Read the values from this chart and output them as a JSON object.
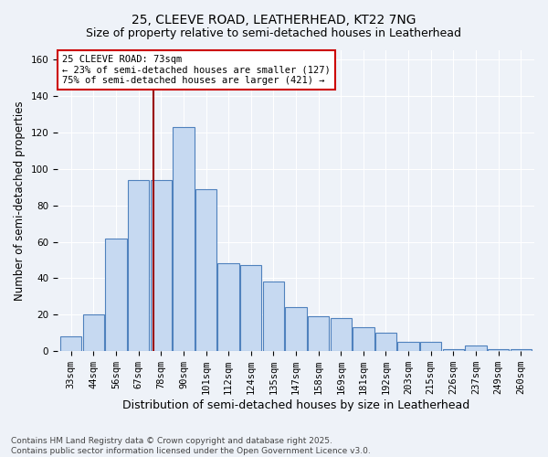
{
  "title": "25, CLEEVE ROAD, LEATHERHEAD, KT22 7NG",
  "subtitle": "Size of property relative to semi-detached houses in Leatherhead",
  "xlabel": "Distribution of semi-detached houses by size in Leatherhead",
  "ylabel": "Number of semi-detached properties",
  "categories": [
    "33sqm",
    "44sqm",
    "56sqm",
    "67sqm",
    "78sqm",
    "90sqm",
    "101sqm",
    "112sqm",
    "124sqm",
    "135sqm",
    "147sqm",
    "158sqm",
    "169sqm",
    "181sqm",
    "192sqm",
    "203sqm",
    "215sqm",
    "226sqm",
    "237sqm",
    "249sqm",
    "260sqm"
  ],
  "values": [
    8,
    20,
    62,
    94,
    94,
    123,
    89,
    48,
    47,
    38,
    24,
    19,
    18,
    13,
    10,
    5,
    5,
    1,
    3,
    1,
    1
  ],
  "bar_color": "#c6d9f1",
  "bar_edge_color": "#4f81bd",
  "red_line_x": 3.65,
  "annotation_title": "25 CLEEVE ROAD: 73sqm",
  "annotation_line1": "← 23% of semi-detached houses are smaller (127)",
  "annotation_line2": "75% of semi-detached houses are larger (421) →",
  "footer_line1": "Contains HM Land Registry data © Crown copyright and database right 2025.",
  "footer_line2": "Contains public sector information licensed under the Open Government Licence v3.0.",
  "background_color": "#eef2f8",
  "ylim": [
    0,
    165
  ],
  "title_fontsize": 10,
  "subtitle_fontsize": 9,
  "xlabel_fontsize": 9,
  "ylabel_fontsize": 8.5,
  "tick_fontsize": 7.5,
  "ann_fontsize": 7.5,
  "footer_fontsize": 6.5
}
